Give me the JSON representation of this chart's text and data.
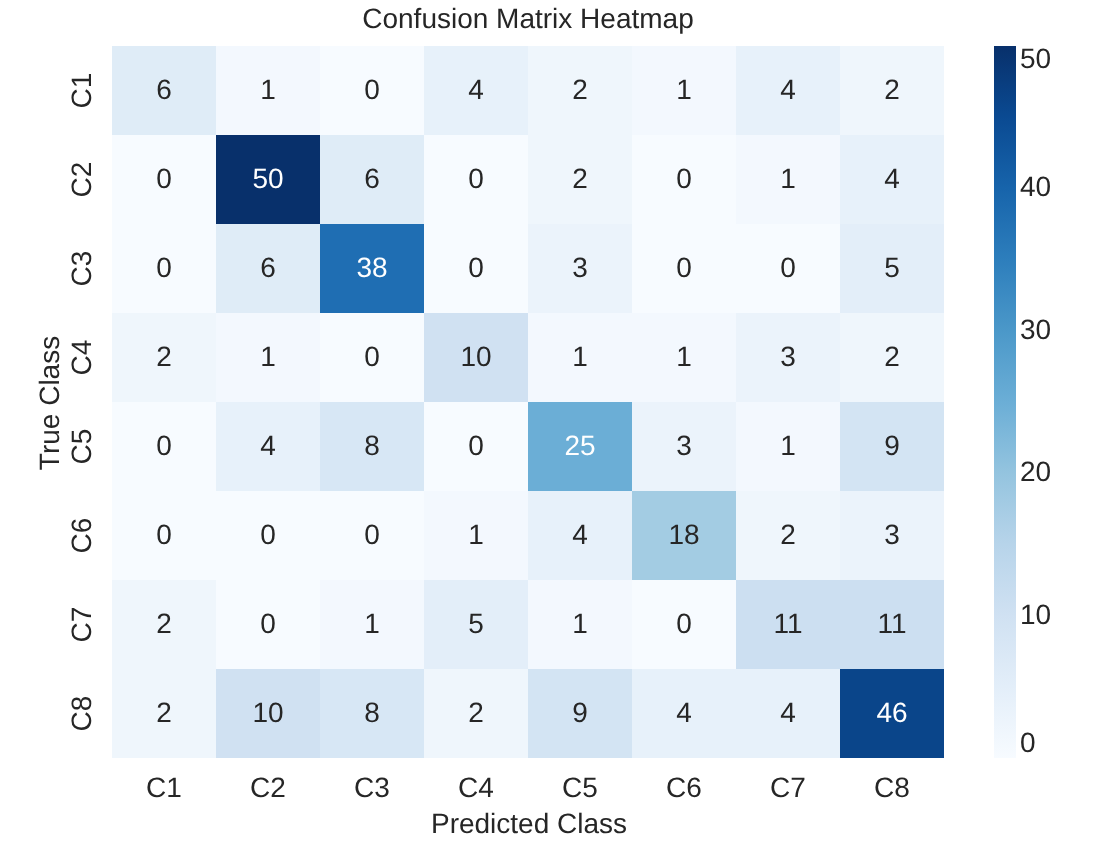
{
  "chart_data": {
    "type": "heatmap",
    "title": "Confusion Matrix Heatmap",
    "xlabel": "Predicted Class",
    "ylabel": "True Class",
    "categories": [
      "C1",
      "C2",
      "C3",
      "C4",
      "C5",
      "C6",
      "C7",
      "C8"
    ],
    "y_categories": [
      "C1",
      "C2",
      "C3",
      "C4",
      "C5",
      "C6",
      "C7",
      "C8"
    ],
    "cells": [
      [
        6,
        1,
        0,
        4,
        2,
        1,
        4,
        2
      ],
      [
        0,
        50,
        6,
        0,
        2,
        0,
        1,
        4
      ],
      [
        0,
        6,
        38,
        0,
        3,
        0,
        0,
        5
      ],
      [
        2,
        1,
        0,
        10,
        1,
        1,
        3,
        2
      ],
      [
        0,
        4,
        8,
        0,
        25,
        3,
        1,
        9
      ],
      [
        0,
        0,
        0,
        1,
        4,
        18,
        2,
        3
      ],
      [
        2,
        0,
        1,
        5,
        1,
        0,
        11,
        11
      ],
      [
        2,
        10,
        8,
        2,
        9,
        4,
        4,
        46
      ]
    ],
    "data_labels": true,
    "clim": [
      0,
      50
    ],
    "cticks": [
      0,
      10,
      20,
      30,
      40,
      50
    ]
  }
}
